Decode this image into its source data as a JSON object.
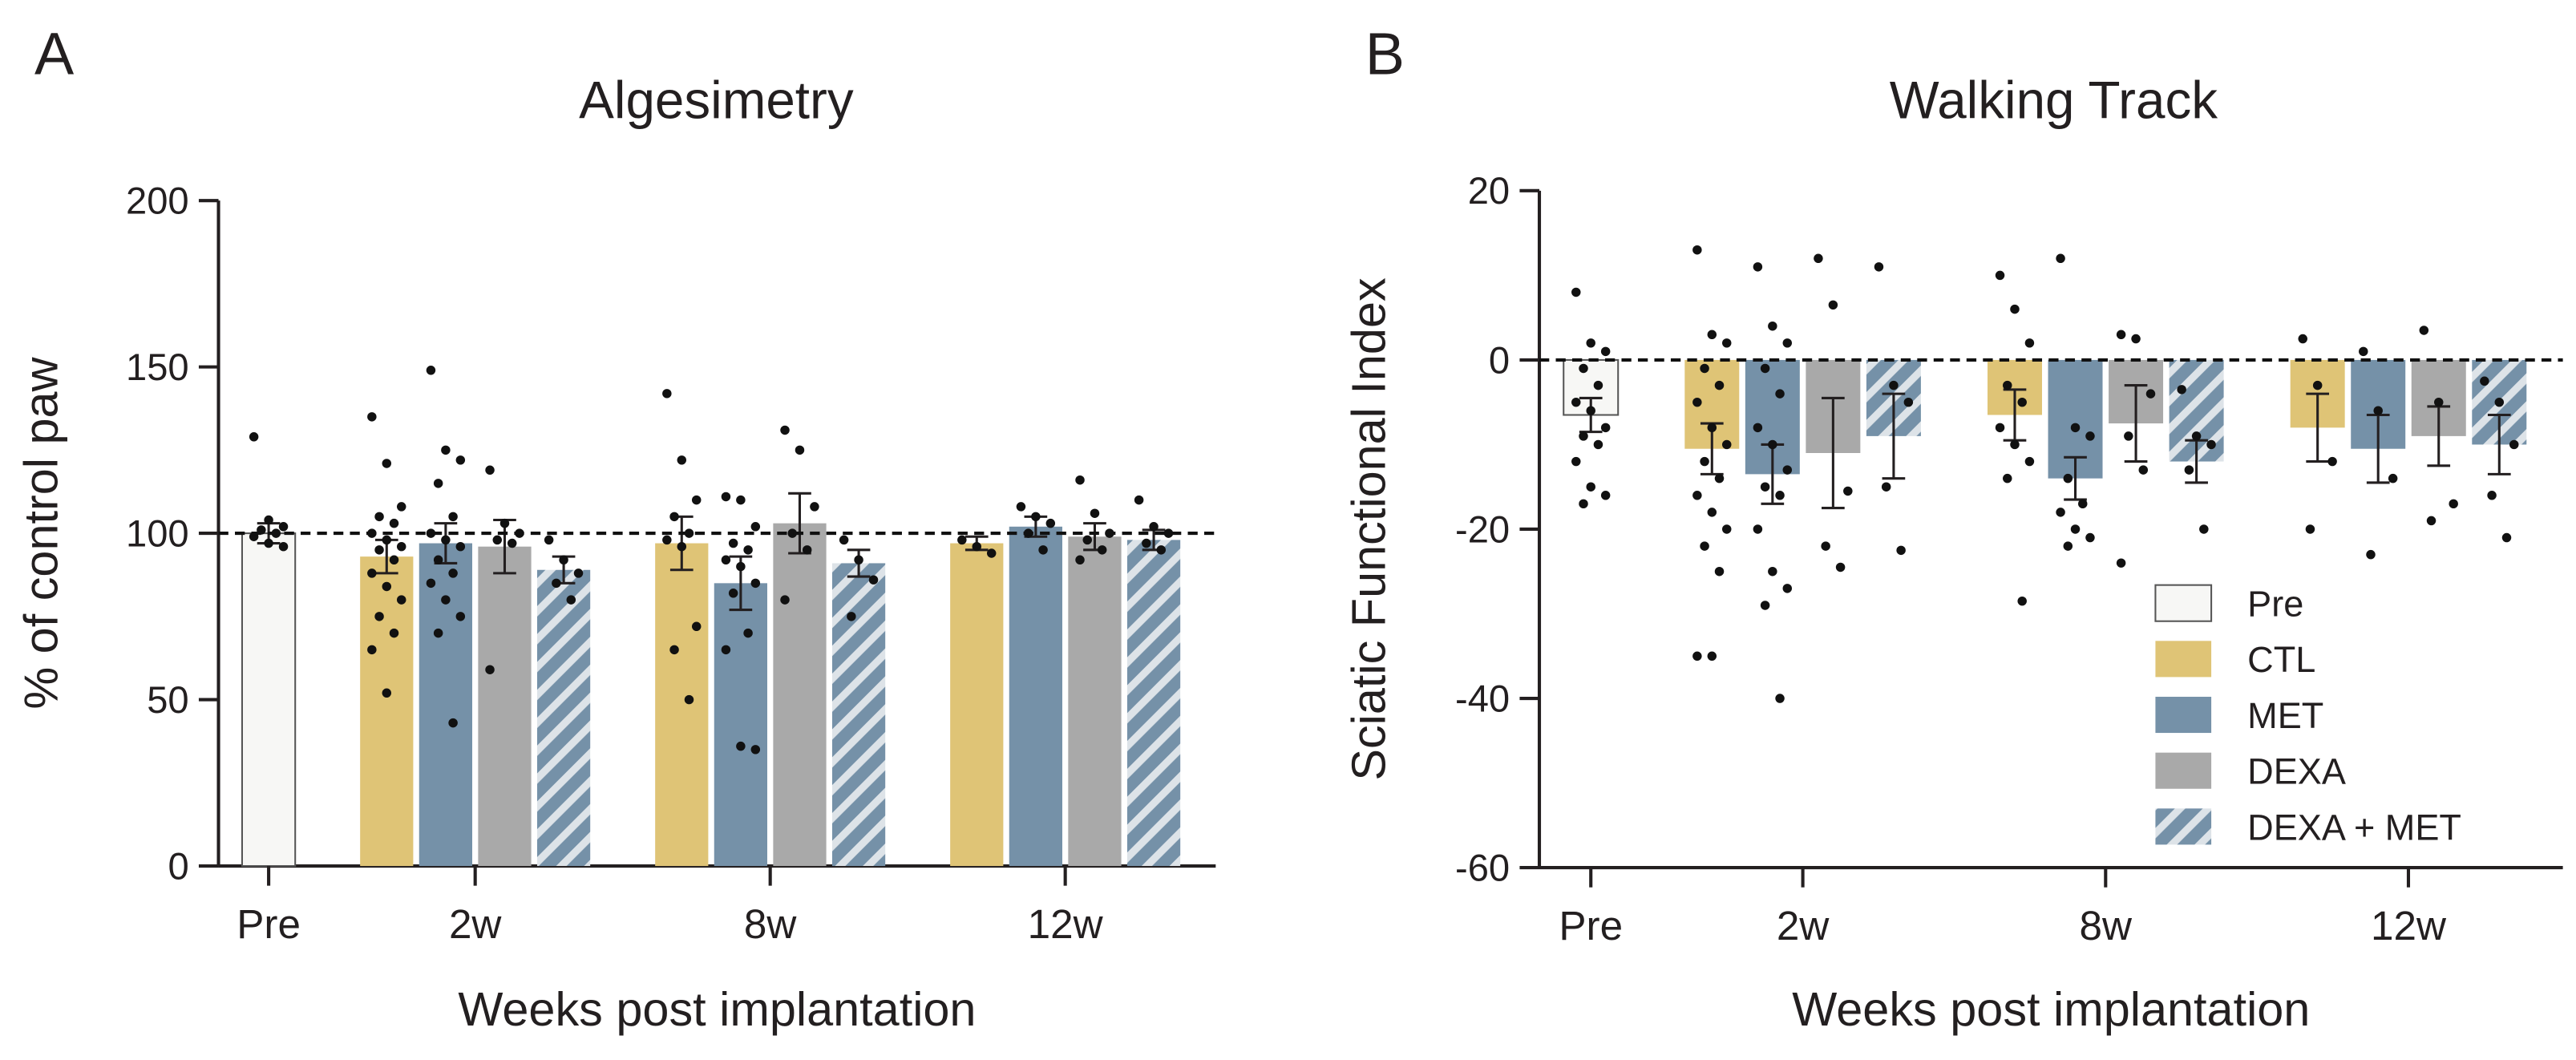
{
  "chart_data": [
    {
      "type": "bar",
      "panel": "A",
      "title": "Algesimetry",
      "x_label": "Weeks post implantation",
      "y_label": "% of control paw",
      "categories": [
        "Pre",
        "2w",
        "8w",
        "12w"
      ],
      "ylim": [
        0,
        200
      ],
      "yticks": [
        0,
        50,
        100,
        150,
        200
      ],
      "reference_line": 100,
      "series": [
        {
          "name": "Pre",
          "color": "#f7f7f5",
          "values": [
            100,
            null,
            null,
            null
          ],
          "errors": [
            3,
            null,
            null,
            null
          ],
          "points": [
            [
              129,
              104,
              102,
              101,
              100,
              99,
              97,
              96
            ],
            null,
            null,
            null
          ]
        },
        {
          "name": "CTL",
          "color": "#dfc476",
          "values": [
            null,
            93,
            97,
            97
          ],
          "errors": [
            null,
            5,
            8,
            2
          ],
          "points": [
            null,
            [
              135,
              121,
              108,
              105,
              103,
              100,
              98,
              96,
              95,
              92,
              88,
              84,
              80,
              75,
              70,
              65,
              52
            ],
            [
              142,
              122,
              110,
              105,
              100,
              98,
              96,
              72,
              65,
              50
            ],
            [
              98,
              96,
              94
            ]
          ]
        },
        {
          "name": "MET",
          "color": "#7591a8",
          "values": [
            null,
            97,
            85,
            102
          ],
          "errors": [
            null,
            6,
            8,
            3
          ],
          "points": [
            null,
            [
              149,
              125,
              122,
              115,
              105,
              100,
              98,
              96,
              92,
              88,
              85,
              80,
              75,
              70,
              43
            ],
            [
              111,
              110,
              102,
              97,
              95,
              92,
              90,
              85,
              82,
              70,
              65,
              36,
              35
            ],
            [
              108,
              105,
              103,
              100,
              95
            ]
          ]
        },
        {
          "name": "DEXA",
          "color": "#a9a9a9",
          "values": [
            null,
            96,
            103,
            99
          ],
          "errors": [
            null,
            8,
            9,
            4
          ],
          "points": [
            null,
            [
              119,
              103,
              100,
              98,
              97,
              59
            ],
            [
              131,
              125,
              108,
              100,
              95,
              80
            ],
            [
              116,
              106,
              100,
              98,
              95,
              92
            ]
          ]
        },
        {
          "name": "DEXA + MET",
          "color": "#7591a8",
          "hatch": true,
          "values": [
            null,
            89,
            91,
            98
          ],
          "errors": [
            null,
            4,
            4,
            3
          ],
          "points": [
            null,
            [
              98,
              92,
              88,
              85,
              80
            ],
            [
              98,
              92,
              86,
              75
            ],
            [
              110,
              102,
              100,
              97,
              95
            ]
          ]
        }
      ]
    },
    {
      "type": "bar",
      "panel": "B",
      "title": "Walking Track",
      "x_label": "Weeks post implantation",
      "y_label": "Sciatic Functional Index",
      "categories": [
        "Pre",
        "2w",
        "8w",
        "12w"
      ],
      "ylim": [
        -60,
        20
      ],
      "yticks": [
        -60,
        -40,
        -20,
        0,
        20
      ],
      "reference_line": 0,
      "legend": "lower right",
      "series": [
        {
          "name": "Pre",
          "color": "#f7f7f5",
          "values": [
            -6.5,
            null,
            null,
            null
          ],
          "errors": [
            2,
            null,
            null,
            null
          ],
          "points": [
            [
              8,
              2,
              1,
              -1,
              -3,
              -5,
              -6,
              -8,
              -9,
              -10,
              -12,
              -15,
              -16,
              -17
            ],
            null,
            null,
            null
          ]
        },
        {
          "name": "CTL",
          "color": "#dfc476",
          "values": [
            null,
            -10.5,
            -6.5,
            -8
          ],
          "errors": [
            null,
            3,
            3,
            4
          ],
          "points": [
            null,
            [
              13,
              3,
              2,
              -1,
              -3,
              -5,
              -8,
              -10,
              -12,
              -14,
              -16,
              -18,
              -20,
              -22,
              -25,
              -35,
              -35
            ],
            [
              10,
              6,
              2,
              -3,
              -5,
              -8,
              -10,
              -12,
              -14,
              -28.5
            ],
            [
              2.5,
              -3,
              -12,
              -20
            ]
          ]
        },
        {
          "name": "MET",
          "color": "#7591a8",
          "values": [
            null,
            -13.5,
            -14,
            -10.5
          ],
          "errors": [
            null,
            3.5,
            2.5,
            4
          ],
          "points": [
            null,
            [
              11,
              4,
              2,
              -1,
              -4,
              -8,
              -10,
              -13,
              -15,
              -16,
              -20,
              -25,
              -27,
              -29,
              -40
            ],
            [
              12,
              -8,
              -9,
              -14,
              -17,
              -18,
              -20,
              -21,
              -22
            ],
            [
              1,
              -6,
              -14,
              -23
            ]
          ]
        },
        {
          "name": "DEXA",
          "color": "#a9a9a9",
          "values": [
            null,
            -11,
            -7.5,
            -9
          ],
          "errors": [
            null,
            6.5,
            4.5,
            3.5
          ],
          "points": [
            null,
            [
              12,
              6.5,
              -15.5,
              -22,
              -24.5
            ],
            [
              3,
              2.5,
              -4,
              -9,
              -13,
              -24
            ],
            [
              3.5,
              -5,
              -17,
              -19
            ]
          ]
        },
        {
          "name": "DEXA + MET",
          "color": "#7591a8",
          "hatch": true,
          "values": [
            null,
            -9,
            -12,
            -10
          ],
          "errors": [
            null,
            5,
            2.5,
            3.5
          ],
          "points": [
            null,
            [
              11,
              -3,
              -5,
              -15,
              -22.5
            ],
            [
              -3.5,
              -9,
              -10,
              -13,
              -20
            ],
            [
              -2.5,
              -5,
              -10,
              -16,
              -21
            ]
          ]
        }
      ]
    }
  ]
}
